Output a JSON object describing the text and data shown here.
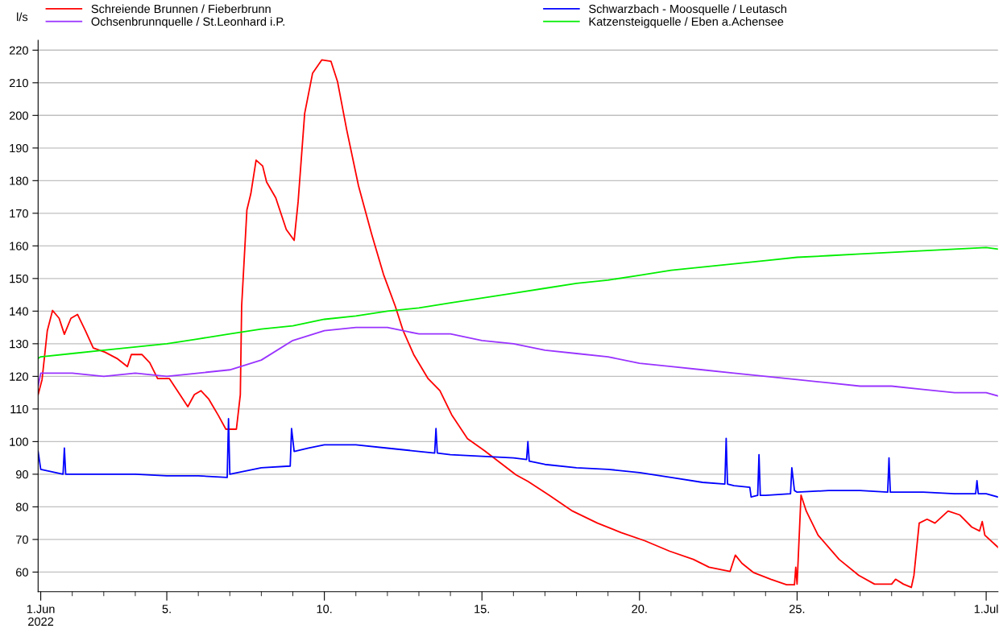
{
  "chart_data": {
    "type": "line",
    "ylabel": "l/s",
    "legend": "top",
    "grid": "y",
    "marker": "none",
    "line_style": "solid",
    "xlim": [
      "2022-05-31T22:00",
      "2022-07-01T09:00"
    ],
    "ylim": [
      54,
      223
    ],
    "yticks": [
      60,
      70,
      80,
      90,
      100,
      110,
      120,
      130,
      140,
      150,
      160,
      170,
      180,
      190,
      200,
      210,
      220
    ],
    "xticks": [
      {
        "value": "2022-06-01",
        "label": "1.Jun\n2022"
      },
      {
        "value": "2022-06-02",
        "label": null
      },
      {
        "value": "2022-06-03",
        "label": null
      },
      {
        "value": "2022-06-04",
        "label": null
      },
      {
        "value": "2022-06-05",
        "label": "5."
      },
      {
        "value": "2022-06-06",
        "label": null
      },
      {
        "value": "2022-06-07",
        "label": null
      },
      {
        "value": "2022-06-08",
        "label": null
      },
      {
        "value": "2022-06-09",
        "label": null
      },
      {
        "value": "2022-06-10",
        "label": "10."
      },
      {
        "value": "2022-06-11",
        "label": null
      },
      {
        "value": "2022-06-12",
        "label": null
      },
      {
        "value": "2022-06-13",
        "label": null
      },
      {
        "value": "2022-06-14",
        "label": null
      },
      {
        "value": "2022-06-15",
        "label": "15."
      },
      {
        "value": "2022-06-16",
        "label": null
      },
      {
        "value": "2022-06-17",
        "label": null
      },
      {
        "value": "2022-06-18",
        "label": null
      },
      {
        "value": "2022-06-19",
        "label": null
      },
      {
        "value": "2022-06-20",
        "label": "20."
      },
      {
        "value": "2022-06-21",
        "label": null
      },
      {
        "value": "2022-06-22",
        "label": null
      },
      {
        "value": "2022-06-23",
        "label": null
      },
      {
        "value": "2022-06-24",
        "label": null
      },
      {
        "value": "2022-06-25",
        "label": "25."
      },
      {
        "value": "2022-06-26",
        "label": null
      },
      {
        "value": "2022-06-27",
        "label": null
      },
      {
        "value": "2022-06-28",
        "label": null
      },
      {
        "value": "2022-06-29",
        "label": null
      },
      {
        "value": "2022-06-30",
        "label": null
      },
      {
        "value": "2022-07-01",
        "label": "1.Jul"
      }
    ],
    "series": [
      {
        "name": "Schreiende Brunnen / Fieberbrunn",
        "color": "#ff0000",
        "x": [
          "2022-05-31T22:00",
          "2022-06-01T01:00",
          "2022-06-01T05:00",
          "2022-06-01T09:00",
          "2022-06-01T14:00",
          "2022-06-01T18:00",
          "2022-06-01T23:00",
          "2022-06-02T04:00",
          "2022-06-02T10:00",
          "2022-06-02T16:00",
          "2022-06-03T01:00",
          "2022-06-03T10:00",
          "2022-06-03T18:00",
          "2022-06-03T21:00",
          "2022-06-04T05:00",
          "2022-06-04T11:00",
          "2022-06-04T17:00",
          "2022-06-05T02:00",
          "2022-06-05T10:00",
          "2022-06-05T16:00",
          "2022-06-05T21:00",
          "2022-06-06T02:00",
          "2022-06-06T08:00",
          "2022-06-06T15:00",
          "2022-06-06T21:00",
          "2022-06-07T05:00",
          "2022-06-07T08:00",
          "2022-06-07T09:00",
          "2022-06-07T13:00",
          "2022-06-07T16:00",
          "2022-06-07T20:00",
          "2022-06-08T01:00",
          "2022-06-08T04:00",
          "2022-06-08T11:00",
          "2022-06-08T19:00",
          "2022-06-09T01:00",
          "2022-06-09T04:00",
          "2022-06-09T09:00",
          "2022-06-09T15:00",
          "2022-06-09T22:00",
          "2022-06-10T05:00",
          "2022-06-10T10:00",
          "2022-06-10T17:00",
          "2022-06-11T02:00",
          "2022-06-11T12:00",
          "2022-06-11T21:00",
          "2022-06-12T06:00",
          "2022-06-12T12:00",
          "2022-06-12T20:00",
          "2022-06-13T07:00",
          "2022-06-13T16:00",
          "2022-06-14T01:00",
          "2022-06-14T13:00",
          "2022-06-15T02:00",
          "2022-06-15T14:00",
          "2022-06-16T02:00",
          "2022-06-16T11:00",
          "2022-06-17T03:00",
          "2022-06-17T21:00",
          "2022-06-18T16:00",
          "2022-06-19T10:00",
          "2022-06-20T04:00",
          "2022-06-20T23:00",
          "2022-06-21T17:00",
          "2022-06-22T05:00",
          "2022-06-22T21:00",
          "2022-06-23T01:00",
          "2022-06-23T06:00",
          "2022-06-23T15:00",
          "2022-06-24T04:00",
          "2022-06-24T16:00",
          "2022-06-24T22:00",
          "2022-06-24T23:00",
          "2022-06-25T00:00",
          "2022-06-25T03:00",
          "2022-06-25T07:00",
          "2022-06-25T16:00",
          "2022-06-26T08:00",
          "2022-06-26T23:00",
          "2022-06-27T11:00",
          "2022-06-28T00:00",
          "2022-06-28T03:00",
          "2022-06-28T09:00",
          "2022-06-28T15:00",
          "2022-06-28T17:00",
          "2022-06-28T21:00",
          "2022-06-29T03:00",
          "2022-06-29T09:00",
          "2022-06-29T19:00",
          "2022-06-30T04:00",
          "2022-06-30T13:00",
          "2022-06-30T19:00",
          "2022-06-30T21:00",
          "2022-06-30T23:00",
          "2022-07-01T09:00"
        ],
        "values": [
          114.4,
          119,
          134,
          140.2,
          137.8,
          132.9,
          137.8,
          139,
          134,
          128.7,
          127.4,
          125.5,
          123,
          126.7,
          126.7,
          124.2,
          119.3,
          119.3,
          114.4,
          110.7,
          114.4,
          115.6,
          113,
          108.2,
          103.8,
          103.8,
          114.4,
          141.5,
          171,
          176,
          186.3,
          184.5,
          179.6,
          174.7,
          165,
          161.7,
          173.5,
          200.6,
          212.9,
          217,
          216.6,
          210.4,
          195.6,
          178.4,
          163.6,
          151.3,
          141.5,
          134,
          126.7,
          119.3,
          115.6,
          108.2,
          100.9,
          97.2,
          93.5,
          89.8,
          87.8,
          83.6,
          78.7,
          75,
          72.1,
          69.6,
          66.4,
          63.9,
          61.5,
          60.2,
          65.2,
          62.7,
          59.8,
          57.8,
          56.1,
          56.1,
          61.5,
          56.3,
          83.6,
          78.7,
          71.3,
          63.9,
          59,
          56.3,
          56.3,
          57.8,
          56.3,
          55.3,
          59,
          75,
          76.2,
          75,
          78.7,
          77.5,
          73.8,
          72.6,
          75.5,
          71.3,
          67.6
        ]
      },
      {
        "name": "Ochsenbrunnquelle / St.Leonhard i.P.",
        "color": "#9933ff",
        "x": [
          "2022-05-31T22:00",
          "2022-06-01",
          "2022-06-02",
          "2022-06-03",
          "2022-06-04",
          "2022-06-05",
          "2022-06-06",
          "2022-06-07",
          "2022-06-08",
          "2022-06-09",
          "2022-06-10",
          "2022-06-11",
          "2022-06-12",
          "2022-06-13",
          "2022-06-14",
          "2022-06-15",
          "2022-06-16",
          "2022-06-17",
          "2022-06-18",
          "2022-06-19",
          "2022-06-20",
          "2022-06-21",
          "2022-06-22",
          "2022-06-23",
          "2022-06-24",
          "2022-06-25",
          "2022-06-26",
          "2022-06-27",
          "2022-06-28",
          "2022-06-29",
          "2022-06-30",
          "2022-07-01",
          "2022-07-01T09:00"
        ],
        "values": [
          117,
          121,
          121,
          120,
          121,
          120,
          121,
          122,
          125,
          131,
          134,
          135,
          135,
          133,
          133,
          131,
          130,
          128,
          127,
          126,
          124,
          123,
          122,
          121,
          120,
          119,
          118,
          117,
          117,
          116,
          115,
          115,
          114
        ]
      },
      {
        "name": "Schwarzbach - Moosquelle / Leutasch",
        "color": "#0000ff",
        "x": [
          "2022-05-31T22:00",
          "2022-06-01",
          "2022-06-01T17:00",
          "2022-06-01T18:00",
          "2022-06-01T19:00",
          "2022-06-02",
          "2022-06-03",
          "2022-06-04",
          "2022-06-05",
          "2022-06-06",
          "2022-06-06T22:00",
          "2022-06-06T23:00",
          "2022-06-07T00:00",
          "2022-06-07",
          "2022-06-08",
          "2022-06-08T22:00",
          "2022-06-08T23:00",
          "2022-06-09T01:00",
          "2022-06-09T12:00",
          "2022-06-10",
          "2022-06-11",
          "2022-06-12",
          "2022-06-13",
          "2022-06-13T12:00",
          "2022-06-13T13:00",
          "2022-06-13T14:00",
          "2022-06-14",
          "2022-06-15",
          "2022-06-16",
          "2022-06-16T10:00",
          "2022-06-16T11:00",
          "2022-06-16T12:00",
          "2022-06-17",
          "2022-06-18",
          "2022-06-19",
          "2022-06-20",
          "2022-06-21",
          "2022-06-22",
          "2022-06-22T17:00",
          "2022-06-22T18:00",
          "2022-06-22T19:00",
          "2022-06-23",
          "2022-06-23T12:00",
          "2022-06-23T13:00",
          "2022-06-23T18:00",
          "2022-06-23T19:00",
          "2022-06-23T20:00",
          "2022-06-24",
          "2022-06-24T19:00",
          "2022-06-24T20:00",
          "2022-06-24T22:00",
          "2022-06-25",
          "2022-06-26",
          "2022-06-27",
          "2022-06-27T21:00",
          "2022-06-27T22:00",
          "2022-06-27T23:00",
          "2022-06-28",
          "2022-06-29",
          "2022-06-30",
          "2022-06-30T16:00",
          "2022-06-30T17:00",
          "2022-06-30T18:00",
          "2022-07-01",
          "2022-07-01T09:00"
        ],
        "values": [
          97,
          91.5,
          90,
          98,
          90,
          90,
          90,
          90,
          89.5,
          89.5,
          89,
          107,
          90,
          90,
          92,
          92.5,
          104,
          97,
          98,
          99,
          99,
          98,
          97,
          96.5,
          104,
          96.5,
          96,
          95.5,
          95,
          94.5,
          100,
          94,
          93,
          92,
          91.5,
          90.5,
          89,
          87.5,
          87,
          101,
          87,
          86.5,
          86,
          83,
          83.5,
          96,
          83.5,
          83.5,
          84,
          92,
          85,
          84.5,
          85,
          85,
          84.5,
          95,
          84.5,
          84.5,
          84.5,
          84,
          84,
          88,
          84,
          84,
          83
        ]
      },
      {
        "name": "Katzensteigquelle / Eben a.Achensee",
        "color": "#00ee00",
        "x": [
          "2022-05-31T22:00",
          "2022-06-01",
          "2022-06-02",
          "2022-06-03",
          "2022-06-04",
          "2022-06-05",
          "2022-06-06",
          "2022-06-07",
          "2022-06-08",
          "2022-06-09",
          "2022-06-10",
          "2022-06-11",
          "2022-06-12",
          "2022-06-13",
          "2022-06-14",
          "2022-06-15",
          "2022-06-16",
          "2022-06-17",
          "2022-06-18",
          "2022-06-19",
          "2022-06-20",
          "2022-06-21",
          "2022-06-22",
          "2022-06-23",
          "2022-06-24",
          "2022-06-25",
          "2022-06-26",
          "2022-06-27",
          "2022-06-28",
          "2022-06-29",
          "2022-06-30",
          "2022-07-01",
          "2022-07-01T09:00"
        ],
        "values": [
          125.5,
          126,
          127,
          128,
          129,
          130,
          131.5,
          133,
          134.5,
          135.5,
          137.5,
          138.5,
          140,
          141,
          142.5,
          144,
          145.5,
          147,
          148.5,
          149.5,
          151,
          152.5,
          153.5,
          154.5,
          155.5,
          156.5,
          157,
          157.5,
          158,
          158.5,
          159,
          159.5,
          159
        ]
      }
    ]
  }
}
